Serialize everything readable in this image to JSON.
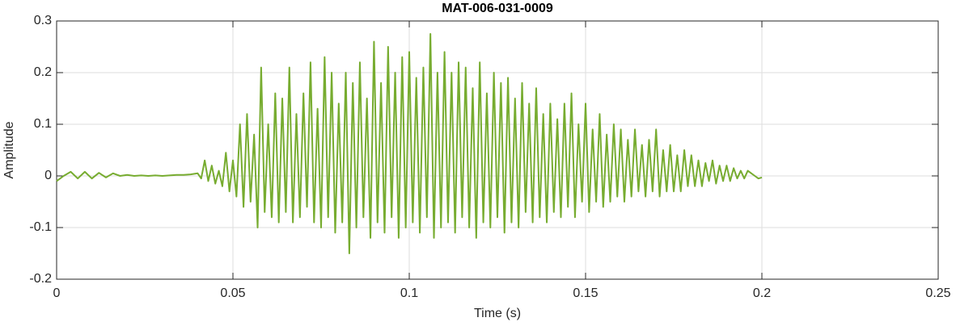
{
  "chart_data": {
    "type": "line",
    "title": "MAT-006-031-0009",
    "xlabel": "Time (s)",
    "ylabel": "Amplitude",
    "xlim": [
      0,
      0.25
    ],
    "xticks": [
      0,
      0.05,
      0.1,
      0.15,
      0.2,
      0.25
    ],
    "ylim": [
      -0.2,
      0.3
    ],
    "yticks": [
      -0.2,
      -0.1,
      0,
      0.1,
      0.2,
      0.3
    ],
    "grid": true,
    "x": [
      0.0,
      0.002,
      0.004,
      0.006,
      0.008,
      0.01,
      0.012,
      0.014,
      0.016,
      0.018,
      0.02,
      0.022,
      0.024,
      0.026,
      0.028,
      0.03,
      0.032,
      0.034,
      0.036,
      0.038,
      0.04,
      0.041,
      0.042,
      0.043,
      0.044,
      0.045,
      0.046,
      0.047,
      0.048,
      0.049,
      0.05,
      0.051,
      0.052,
      0.053,
      0.054,
      0.055,
      0.056,
      0.057,
      0.058,
      0.059,
      0.06,
      0.061,
      0.062,
      0.063,
      0.064,
      0.065,
      0.066,
      0.067,
      0.068,
      0.069,
      0.07,
      0.071,
      0.072,
      0.073,
      0.074,
      0.075,
      0.076,
      0.077,
      0.078,
      0.079,
      0.08,
      0.081,
      0.082,
      0.083,
      0.084,
      0.085,
      0.086,
      0.087,
      0.088,
      0.089,
      0.09,
      0.091,
      0.092,
      0.093,
      0.094,
      0.095,
      0.096,
      0.097,
      0.098,
      0.099,
      0.1,
      0.101,
      0.102,
      0.103,
      0.104,
      0.105,
      0.106,
      0.107,
      0.108,
      0.109,
      0.11,
      0.111,
      0.112,
      0.113,
      0.114,
      0.115,
      0.116,
      0.117,
      0.118,
      0.119,
      0.12,
      0.121,
      0.122,
      0.123,
      0.124,
      0.125,
      0.126,
      0.127,
      0.128,
      0.129,
      0.13,
      0.131,
      0.132,
      0.133,
      0.134,
      0.135,
      0.136,
      0.137,
      0.138,
      0.139,
      0.14,
      0.141,
      0.142,
      0.143,
      0.144,
      0.145,
      0.146,
      0.147,
      0.148,
      0.149,
      0.15,
      0.151,
      0.152,
      0.153,
      0.154,
      0.155,
      0.156,
      0.157,
      0.158,
      0.159,
      0.16,
      0.161,
      0.162,
      0.163,
      0.164,
      0.165,
      0.166,
      0.167,
      0.168,
      0.169,
      0.17,
      0.171,
      0.172,
      0.173,
      0.174,
      0.175,
      0.176,
      0.177,
      0.178,
      0.179,
      0.18,
      0.181,
      0.182,
      0.183,
      0.184,
      0.185,
      0.186,
      0.187,
      0.188,
      0.189,
      0.19,
      0.191,
      0.192,
      0.193,
      0.194,
      0.195,
      0.196,
      0.197,
      0.198,
      0.199,
      0.2
    ],
    "series": [
      {
        "name": "Amplitude",
        "color": "#77ac30",
        "values": [
          -0.01,
          0.0,
          0.008,
          -0.005,
          0.008,
          -0.005,
          0.006,
          -0.003,
          0.005,
          0.0,
          0.002,
          0.0,
          0.001,
          0.0,
          0.001,
          0.0,
          0.001,
          0.002,
          0.002,
          0.003,
          0.005,
          -0.005,
          0.03,
          -0.01,
          0.02,
          -0.015,
          0.01,
          -0.02,
          0.045,
          -0.03,
          0.03,
          -0.04,
          0.1,
          -0.06,
          0.12,
          -0.05,
          0.08,
          -0.1,
          0.21,
          -0.07,
          0.1,
          -0.08,
          0.16,
          -0.09,
          0.15,
          -0.07,
          0.21,
          -0.09,
          0.12,
          -0.08,
          0.16,
          -0.06,
          0.22,
          -0.09,
          0.13,
          -0.1,
          0.23,
          -0.08,
          0.2,
          -0.11,
          0.14,
          -0.09,
          0.2,
          -0.15,
          0.18,
          -0.1,
          0.22,
          -0.08,
          0.15,
          -0.12,
          0.26,
          -0.09,
          0.18,
          -0.11,
          0.25,
          -0.08,
          0.2,
          -0.12,
          0.23,
          -0.1,
          0.24,
          -0.09,
          0.19,
          -0.11,
          0.21,
          -0.08,
          0.275,
          -0.12,
          0.2,
          -0.1,
          0.24,
          -0.09,
          0.2,
          -0.11,
          0.22,
          -0.08,
          0.21,
          -0.1,
          0.17,
          -0.12,
          0.22,
          -0.09,
          0.16,
          -0.1,
          0.2,
          -0.08,
          0.18,
          -0.11,
          0.19,
          -0.09,
          0.15,
          -0.1,
          0.18,
          -0.07,
          0.14,
          -0.09,
          0.17,
          -0.08,
          0.12,
          -0.09,
          0.14,
          -0.07,
          0.11,
          -0.08,
          0.14,
          -0.06,
          0.16,
          -0.08,
          0.1,
          -0.05,
          0.14,
          -0.07,
          0.09,
          -0.05,
          0.12,
          -0.06,
          0.08,
          -0.05,
          0.1,
          -0.04,
          0.09,
          -0.05,
          0.07,
          -0.04,
          0.09,
          -0.03,
          0.06,
          -0.04,
          0.07,
          -0.03,
          0.09,
          -0.04,
          0.05,
          -0.03,
          0.06,
          -0.03,
          0.04,
          -0.03,
          0.05,
          -0.02,
          0.04,
          -0.02,
          0.03,
          -0.02,
          0.025,
          -0.01,
          0.03,
          -0.015,
          0.02,
          -0.01,
          0.02,
          -0.01,
          0.015,
          -0.005,
          0.01,
          -0.005,
          0.01,
          0.005,
          0.0,
          -0.005,
          -0.003
        ]
      }
    ]
  }
}
